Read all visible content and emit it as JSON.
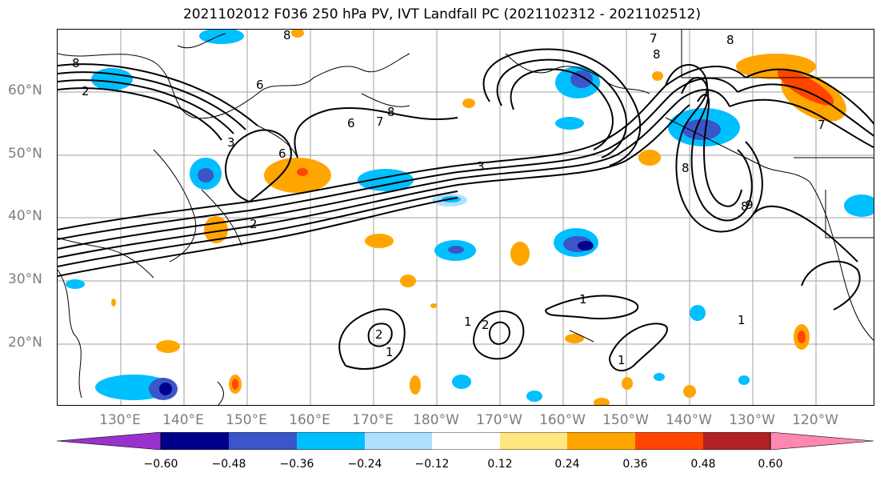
{
  "title": "2021102012 F036 250 hPa PV, IVT Landfall PC (2021102312 - 2021102512)",
  "lat_labels": [
    "60°N",
    "50°N",
    "40°N",
    "30°N",
    "20°N"
  ],
  "lon_labels": [
    "130°E",
    "140°E",
    "150°E",
    "160°E",
    "170°E",
    "180°W",
    "170°W",
    "160°W",
    "150°W",
    "140°W",
    "130°W",
    "120°W"
  ],
  "colorbar": {
    "ticks": [
      "−0.60",
      "−0.48",
      "−0.36",
      "−0.24",
      "−0.12",
      "0.12",
      "0.24",
      "0.36",
      "0.48",
      "0.60"
    ],
    "colors": [
      "#9932cc",
      "#00008b",
      "#3a56c9",
      "#00bfff",
      "#b0e0ff",
      "#ffffff",
      "#ffe680",
      "#ffa500",
      "#ff4500",
      "#b22222",
      "#ff88b0"
    ]
  },
  "contour_labels": [
    "8",
    "6",
    "7",
    "8",
    "8",
    "7",
    "6",
    "2",
    "3",
    "2",
    "3",
    "6",
    "8",
    "8",
    "8",
    "8",
    "9",
    "7",
    "1",
    "2",
    "1",
    "1",
    "2",
    "1",
    "1"
  ],
  "colors": {
    "shade_neg_strong": "#3a56c9",
    "shade_neg": "#00bfff",
    "shade_neg_light": "#b0e0ff",
    "shade_pos": "#ffa500",
    "shade_pos_light": "#ffe680",
    "shade_pos_strong": "#ff4500"
  }
}
